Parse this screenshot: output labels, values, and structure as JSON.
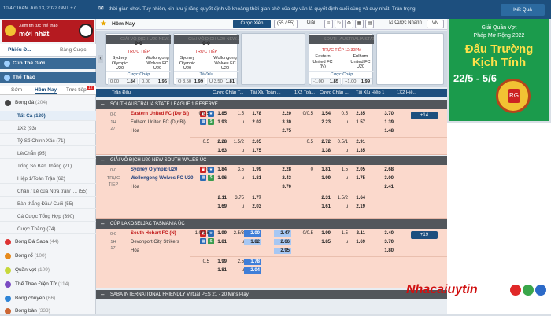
{
  "topbar": {
    "time": "10:47:16AM Jun 13, 2022 GMT +7",
    "notice": "thời gian chơi. Tuy nhiên, xin lưu ý rằng quyết định về khoảng thời gian chờ của cty vẫn là quyết định cuối cùng và duy nhất. Trân trọng.",
    "wallet_label": "Kết Quả"
  },
  "promo": {
    "line1": "Xem tin tức thể thao",
    "line2": "mới nhất"
  },
  "sidebar": {
    "tab_active": "Phiếu Đ...",
    "tab_other": "Bảng Cược",
    "sections": {
      "favorite": "Cúp Thế Giới",
      "sports": "Thể Thao"
    },
    "subtabs": [
      "Sớm",
      "Hôm Nay",
      "Trực tiếp"
    ],
    "subtab_badge": "12",
    "sports": [
      {
        "label": "Bóng đá",
        "count": "(204)"
      }
    ],
    "football_items": [
      "Tất Cả (130)",
      "1X2 (93)",
      "Tỷ Số Chính Xác (71)",
      "Lẻ/Chẵn (95)",
      "Tổng Số Bàn Thắng (71)",
      "Hiệp 1/Toàn Trận (62)",
      "Chấn / Lẻ của Nửa trận/T... (55)",
      "Bàn thắng Đầu/ Cuối (55)",
      "Cá Cược Tổng Hợp (390)",
      "Cược Thẳng (74)"
    ],
    "other_sports": [
      {
        "label": "Bóng Đá Saba",
        "count": "(44)"
      },
      {
        "label": "Bóng rổ",
        "count": "(100)"
      },
      {
        "label": "Quần vợt",
        "count": "(109)"
      },
      {
        "label": "Thể Thao Điện Tử",
        "count": "(114)"
      },
      {
        "label": "Bóng chuyền",
        "count": "(66)"
      },
      {
        "label": "Bóng bàn",
        "count": "(333)"
      }
    ]
  },
  "mainhead": {
    "title": "Hôm Nay",
    "btn_bet": "Cược Xiên",
    "count": "(55 / 55)",
    "sort_label": "Giải",
    "quickbet": "Cược Nhanh",
    "lang": "VN"
  },
  "cards": [
    {
      "league": "GIẢI VÔ ĐỊCH U20 NEW...",
      "score": "0-0",
      "status": "TRỰC TIẾP",
      "home": "Sydney Olympic U20",
      "away": "Wollongong Wolves FC U20",
      "market": "Cược Chấp",
      "o1a": "0.00",
      "o1b": "1.84",
      "o2a": "0.00",
      "o2b": "1.96"
    },
    {
      "league": "GIẢI VÔ ĐỊCH U20 NEW...",
      "score": "0-0",
      "status": "TRỰC TIẾP",
      "home": "Sydney Olympic U20",
      "away": "Wollongong Wolves FC U20",
      "market": "Tài/Xỉu",
      "o1a": "O 3.50",
      "o1b": "1.99",
      "o2a": "U 3.50",
      "o2b": "1.81"
    },
    {
      "league": "SOUTH AUSTRALIA STATE...",
      "score": "",
      "status": "TRỰC TIẾP 12:30PM",
      "home": "Eastern United FC (N)",
      "away": "Fulham United FC U20",
      "market": "Cược Chấp",
      "o1a": "-1.00",
      "o1b": "1.85",
      "o2a": "+1.00",
      "o2b": "1.99"
    }
  ],
  "thead": [
    "Trận Đấu",
    "Cược Chấp T...",
    "Tài Xỉu Toàn ...",
    "1X2 Toà...",
    "Cược Chấp ...",
    "Tài Xỉu Hiệp 1",
    "1X2 Hiệ..."
  ],
  "leagues": [
    "SOUTH AUSTRALIA STATE LEAGUE 1 RESERVE",
    "GIẢI VÔ ĐỊCH U20 NEW SOUTH WALES ÚC",
    "CÚP LAKOSELJAC TASMANIA ÚC",
    "SABA INTERNATIONAL FRIENDLY Virtual PES 21 - 20 Mins Play"
  ],
  "matches": [
    {
      "time1": "0-0",
      "time2": "1H",
      "time3": "27'",
      "home": "Eastern United FC (Dự Bị)",
      "away": "Fulham United FC (Dự Bị)",
      "draw": "Hòa",
      "more_btn": "+14",
      "rows": [
        [
          "0/0.5",
          "1.85",
          "1.5",
          "1.78",
          "2.20",
          "0/0.5",
          "1.54",
          "0.5",
          "2.35",
          "3.70"
        ],
        [
          "",
          "1.93",
          "u",
          "2.02",
          "3.30",
          "",
          "2.23",
          "u",
          "1.57",
          "1.39"
        ],
        [
          "",
          "",
          "",
          "",
          "2.75",
          "",
          "",
          "",
          "",
          "1.48"
        ],
        [
          "0.5",
          "2.28",
          "1.5/2",
          "2.05",
          "",
          "0.5",
          "2.72",
          "0.5/1",
          "2.91",
          ""
        ],
        [
          "",
          "1.63",
          "u",
          "1.75",
          "",
          "",
          "1.38",
          "u",
          "1.35",
          ""
        ]
      ],
      "more": "Các loại cược Châu Á khác"
    },
    {
      "time1": "0-0",
      "time2": "TRỰC",
      "time3": "TIẾP",
      "home": "Sydney Olympic U20",
      "away": "Wollongong Wolves FC U20",
      "draw": "Hòa",
      "more_btn": "",
      "rows": [
        [
          "0",
          "1.84",
          "3.5",
          "1.99",
          "2.28",
          "0",
          "1.81",
          "1.5",
          "2.05",
          "2.68"
        ],
        [
          "",
          "1.96",
          "u",
          "1.81",
          "2.43",
          "",
          "1.99",
          "u",
          "1.75",
          "3.00"
        ],
        [
          "",
          "",
          "",
          "",
          "3.70",
          "",
          "",
          "",
          "",
          "2.41"
        ],
        [
          "",
          "2.11",
          "3.75",
          "1.77",
          "",
          "",
          "2.31",
          "1.5/2",
          "1.64",
          ""
        ],
        [
          "",
          "1.69",
          "u",
          "2.03",
          "",
          "",
          "1.61",
          "u",
          "2.19",
          ""
        ]
      ],
      "more": ""
    },
    {
      "time1": "0-0",
      "time2": "1H",
      "time3": "17'",
      "home": "South Hobart FC (N)",
      "away": "Devonport City Strikers",
      "draw": "Hòa",
      "more_btn": "+19",
      "rows": [
        [
          "1.0/1.5",
          "1.99",
          "2.5/3",
          "2.00",
          "2.47",
          "0/0.5",
          "1.99",
          "1.5",
          "2.11",
          "3.40"
        ],
        [
          "",
          "1.81",
          "u",
          "1.82",
          "2.66",
          "",
          "1.85",
          "u",
          "1.69",
          "3.70"
        ],
        [
          "",
          "",
          "",
          "",
          "2.95",
          "",
          "",
          "",
          "",
          "1.80"
        ],
        [
          "0.5",
          "1.99",
          "2.5",
          "1.78",
          "",
          "",
          "",
          "",
          "",
          ""
        ],
        [
          "",
          "1.81",
          "u",
          "2.04",
          "",
          "",
          "",
          "",
          "",
          ""
        ]
      ],
      "more": ""
    }
  ],
  "ad": {
    "l1": "Giải Quần Vợt",
    "l2": "Pháp Mở Rộng 2022",
    "l3": "Đấu Trường",
    "l4": "Kịch Tính",
    "l5": "22/5 - 5/6",
    "logo": "RG"
  },
  "watermark": {
    "text": "Nhacaiuytin"
  }
}
